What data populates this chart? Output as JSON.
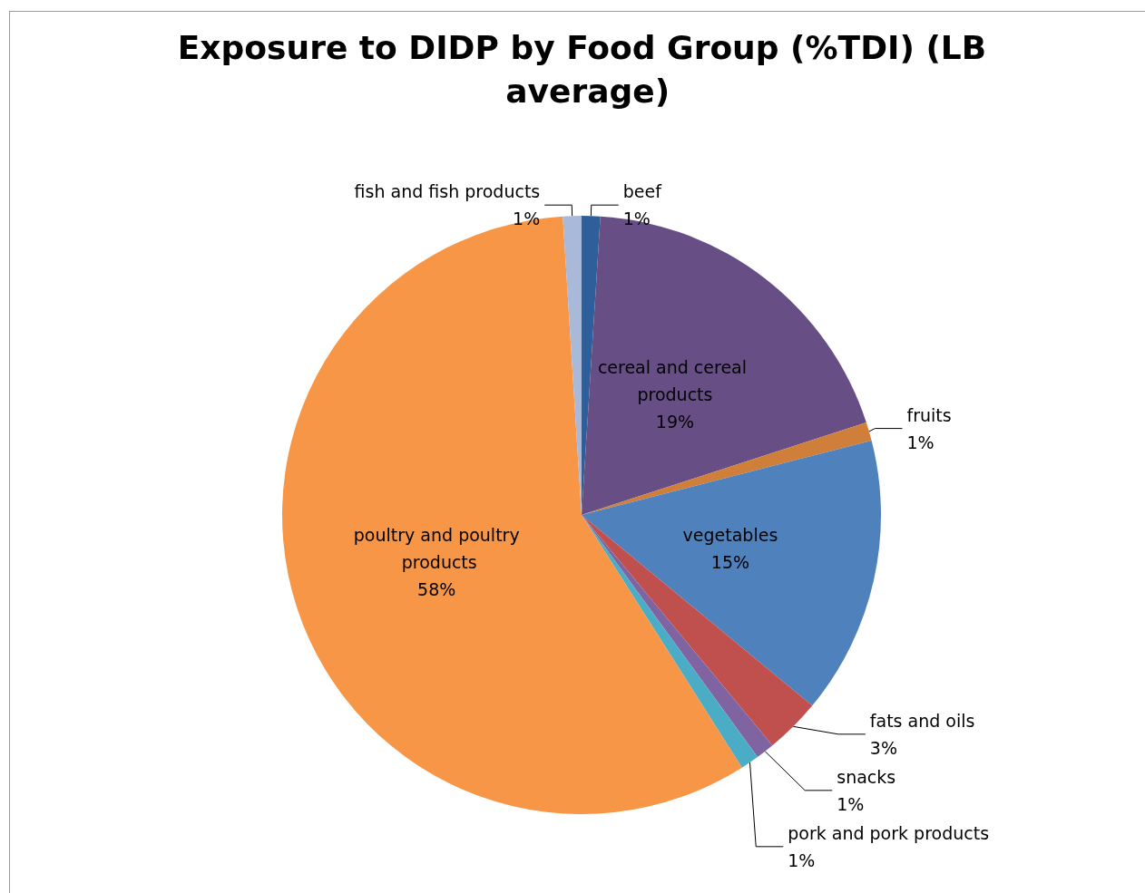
{
  "chart_data": {
    "type": "pie",
    "title": "Exposure to DIDP by Food Group (%TDI) (LB average)",
    "categories": [
      "beef",
      "cereal and cereal products",
      "fruits",
      "vegetables",
      "fats and oils",
      "snacks",
      "pork and pork products",
      "poultry and poultry products",
      "fish and fish products"
    ],
    "values": [
      1,
      19,
      1,
      15,
      3,
      1,
      1,
      58,
      1
    ],
    "value_labels": [
      "1%",
      "19%",
      "1%",
      "15%",
      "3%",
      "1%",
      "1%",
      "58%",
      "1%"
    ],
    "colors": [
      "#2e5f9a",
      "#674f86",
      "#d07f3a",
      "#4f81bd",
      "#c0504d",
      "#8064a2",
      "#4bacc6",
      "#f79646",
      "#a9b9d9"
    ]
  }
}
